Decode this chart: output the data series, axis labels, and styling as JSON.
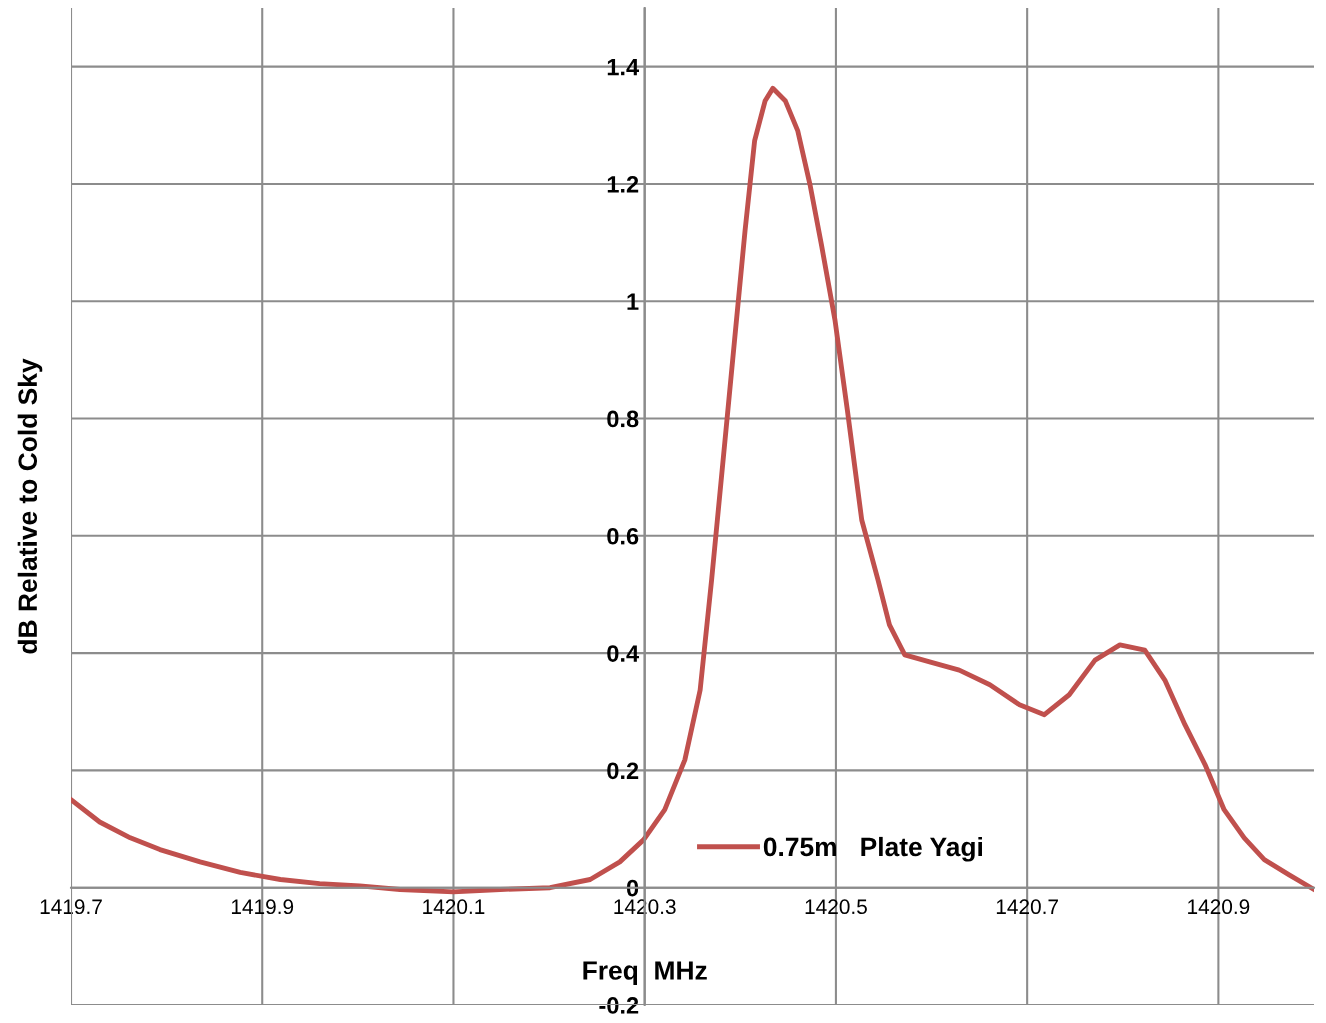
{
  "chart_data": {
    "type": "line",
    "xlabel": "Freq  MHz",
    "ylabel": "dB Relative to Cold Sky",
    "xlim": [
      1419.7,
      1421.0
    ],
    "ylim": [
      -0.2,
      1.5
    ],
    "xticks": [
      1419.7,
      1419.9,
      1420.1,
      1420.3,
      1420.5,
      1420.7,
      1420.9
    ],
    "yticks": [
      -0.2,
      0,
      0.2,
      0.4,
      0.6,
      0.8,
      1,
      1.2,
      1.4
    ],
    "grid": true,
    "legend": "bottom",
    "marker": "none",
    "line_style": "solid",
    "series": [
      {
        "name": "0.75m   Plate Yagi",
        "color": "#c0504d",
        "x": [
          1419.7,
          1419.73,
          1419.762,
          1419.793,
          1419.835,
          1419.877,
          1419.919,
          1419.96,
          1420.002,
          1420.044,
          1420.1,
          1420.149,
          1420.201,
          1420.243,
          1420.274,
          1420.299,
          1420.321,
          1420.342,
          1420.358,
          1420.37,
          1420.384,
          1420.394,
          1420.405,
          1420.415,
          1420.426,
          1420.434,
          1420.447,
          1420.46,
          1420.473,
          1420.485,
          1420.499,
          1420.512,
          1420.527,
          1420.544,
          1420.556,
          1420.572,
          1420.598,
          1420.629,
          1420.661,
          1420.692,
          1420.718,
          1420.744,
          1420.771,
          1420.797,
          1420.823,
          1420.844,
          1420.865,
          1420.886,
          1420.906,
          1420.927,
          1420.948,
          1420.974,
          1421.0
        ],
        "values": [
          0.15,
          0.112,
          0.085,
          0.065,
          0.044,
          0.026,
          0.014,
          0.007,
          0.003,
          -0.003,
          -0.007,
          -0.003,
          0.0,
          0.014,
          0.044,
          0.082,
          0.133,
          0.218,
          0.337,
          0.525,
          0.763,
          0.934,
          1.121,
          1.274,
          1.342,
          1.363,
          1.342,
          1.291,
          1.198,
          1.095,
          0.968,
          0.814,
          0.627,
          0.525,
          0.448,
          0.397,
          0.385,
          0.371,
          0.346,
          0.312,
          0.295,
          0.329,
          0.388,
          0.414,
          0.405,
          0.354,
          0.278,
          0.21,
          0.133,
          0.085,
          0.048,
          0.022,
          -0.003
        ]
      }
    ]
  }
}
